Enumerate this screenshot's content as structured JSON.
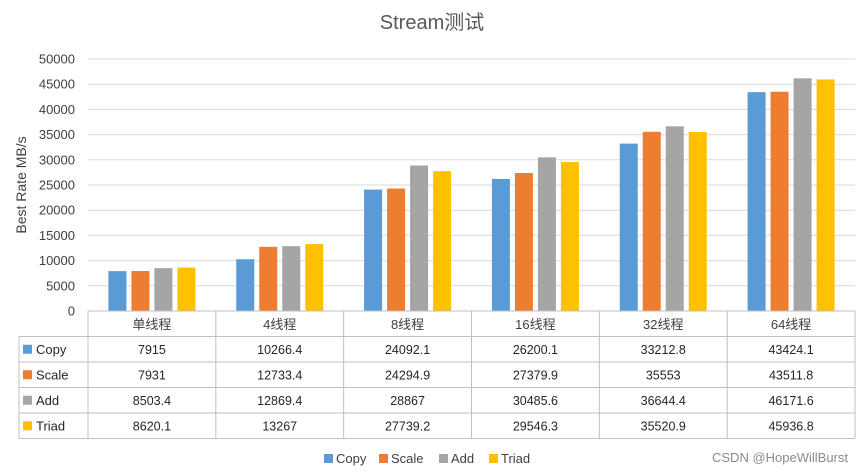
{
  "colors": {
    "Copy": "#5b9bd5",
    "Scale": "#ed7d31",
    "Add": "#a5a5a5",
    "Triad": "#ffc000"
  },
  "watermark": "CSDN @HopeWillBurst",
  "chart_data": {
    "type": "bar",
    "title": "Stream测试",
    "ylabel": "Best Rate MB/s",
    "xlabel": "",
    "ylim": [
      0,
      50000
    ],
    "yticks": [
      0,
      5000,
      10000,
      15000,
      20000,
      25000,
      30000,
      35000,
      40000,
      45000,
      50000
    ],
    "grid": true,
    "legend_position": "bottom",
    "data_table": true,
    "categories": [
      "单线程",
      "4线程",
      "8线程",
      "16线程",
      "32线程",
      "64线程"
    ],
    "series": [
      {
        "name": "Copy",
        "values": [
          7915,
          10266.4,
          24092.1,
          26200.1,
          33212.8,
          43424.1
        ]
      },
      {
        "name": "Scale",
        "values": [
          7931,
          12733.4,
          24294.9,
          27379.9,
          35553,
          43511.8
        ]
      },
      {
        "name": "Add",
        "values": [
          8503.4,
          12869.4,
          28867,
          30485.6,
          36644.4,
          46171.6
        ]
      },
      {
        "name": "Triad",
        "values": [
          8620.1,
          13267,
          27739.2,
          29546.3,
          35520.9,
          45936.8
        ]
      }
    ]
  }
}
